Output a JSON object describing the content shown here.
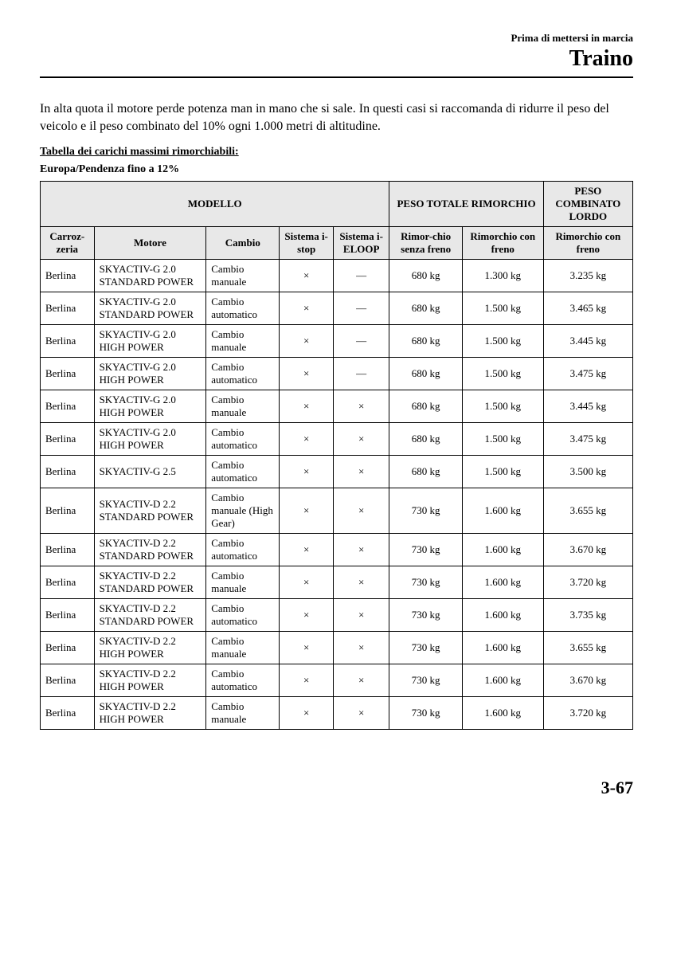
{
  "header": {
    "subtitle": "Prima di mettersi in marcia",
    "title": "Traino"
  },
  "intro": "In alta quota il motore perde potenza man in mano che si sale. In questi casi si raccomanda di ridurre il peso del veicolo e il peso combinato del 10% ogni 1.000 metri di altitudine.",
  "table_title": "Tabella dei carichi massimi rimorchiabili:",
  "region": "Europa/Pendenza fino a 12%",
  "columns": {
    "group_model": "MODELLO",
    "group_weight": "PESO TOTALE RIMORCHIO",
    "group_comb": "PESO COMBINATO LORDO",
    "carrozzeria": "Carroz-zeria",
    "motore": "Motore",
    "cambio": "Cambio",
    "istop": "Sistema i-stop",
    "ieloop": "Sistema i-ELOOP",
    "nofreno": "Rimor-chio senza freno",
    "freno": "Rimorchio con freno",
    "comb": "Rimorchio con freno"
  },
  "rows": [
    {
      "carr": "Berlina",
      "eng": "SKYACTIV-G 2.0 STANDARD POWER",
      "cambio": "Cambio manuale",
      "istop": "×",
      "iloop": "—",
      "nofr": "680 kg",
      "fr": "1.300 kg",
      "comb": "3.235 kg"
    },
    {
      "carr": "Berlina",
      "eng": "SKYACTIV-G 2.0 STANDARD POWER",
      "cambio": "Cambio automatico",
      "istop": "×",
      "iloop": "—",
      "nofr": "680 kg",
      "fr": "1.500 kg",
      "comb": "3.465 kg"
    },
    {
      "carr": "Berlina",
      "eng": "SKYACTIV-G 2.0 HIGH POWER",
      "cambio": "Cambio manuale",
      "istop": "×",
      "iloop": "—",
      "nofr": "680 kg",
      "fr": "1.500 kg",
      "comb": "3.445 kg"
    },
    {
      "carr": "Berlina",
      "eng": "SKYACTIV-G 2.0 HIGH POWER",
      "cambio": "Cambio automatico",
      "istop": "×",
      "iloop": "—",
      "nofr": "680 kg",
      "fr": "1.500 kg",
      "comb": "3.475 kg"
    },
    {
      "carr": "Berlina",
      "eng": "SKYACTIV-G 2.0 HIGH POWER",
      "cambio": "Cambio manuale",
      "istop": "×",
      "iloop": "×",
      "nofr": "680 kg",
      "fr": "1.500 kg",
      "comb": "3.445 kg"
    },
    {
      "carr": "Berlina",
      "eng": "SKYACTIV-G 2.0 HIGH POWER",
      "cambio": "Cambio automatico",
      "istop": "×",
      "iloop": "×",
      "nofr": "680 kg",
      "fr": "1.500 kg",
      "comb": "3.475 kg"
    },
    {
      "carr": "Berlina",
      "eng": "SKYACTIV-G 2.5",
      "cambio": "Cambio automatico",
      "istop": "×",
      "iloop": "×",
      "nofr": "680 kg",
      "fr": "1.500 kg",
      "comb": "3.500 kg"
    },
    {
      "carr": "Berlina",
      "eng": "SKYACTIV-D 2.2 STANDARD POWER",
      "cambio": "Cambio manuale (High Gear)",
      "istop": "×",
      "iloop": "×",
      "nofr": "730 kg",
      "fr": "1.600 kg",
      "comb": "3.655 kg"
    },
    {
      "carr": "Berlina",
      "eng": "SKYACTIV-D 2.2 STANDARD POWER",
      "cambio": "Cambio automatico",
      "istop": "×",
      "iloop": "×",
      "nofr": "730 kg",
      "fr": "1.600 kg",
      "comb": "3.670 kg"
    },
    {
      "carr": "Berlina",
      "eng": "SKYACTIV-D 2.2 STANDARD POWER",
      "cambio": "Cambio manuale",
      "istop": "×",
      "iloop": "×",
      "nofr": "730 kg",
      "fr": "1.600 kg",
      "comb": "3.720 kg"
    },
    {
      "carr": "Berlina",
      "eng": "SKYACTIV-D 2.2 STANDARD POWER",
      "cambio": "Cambio automatico",
      "istop": "×",
      "iloop": "×",
      "nofr": "730 kg",
      "fr": "1.600 kg",
      "comb": "3.735 kg"
    },
    {
      "carr": "Berlina",
      "eng": "SKYACTIV-D 2.2 HIGH POWER",
      "cambio": "Cambio manuale",
      "istop": "×",
      "iloop": "×",
      "nofr": "730 kg",
      "fr": "1.600 kg",
      "comb": "3.655 kg"
    },
    {
      "carr": "Berlina",
      "eng": "SKYACTIV-D 2.2 HIGH POWER",
      "cambio": "Cambio automatico",
      "istop": "×",
      "iloop": "×",
      "nofr": "730 kg",
      "fr": "1.600 kg",
      "comb": "3.670 kg"
    },
    {
      "carr": "Berlina",
      "eng": "SKYACTIV-D 2.2 HIGH POWER",
      "cambio": "Cambio manuale",
      "istop": "×",
      "iloop": "×",
      "nofr": "730 kg",
      "fr": "1.600 kg",
      "comb": "3.720 kg"
    }
  ],
  "page_num": "3-67"
}
